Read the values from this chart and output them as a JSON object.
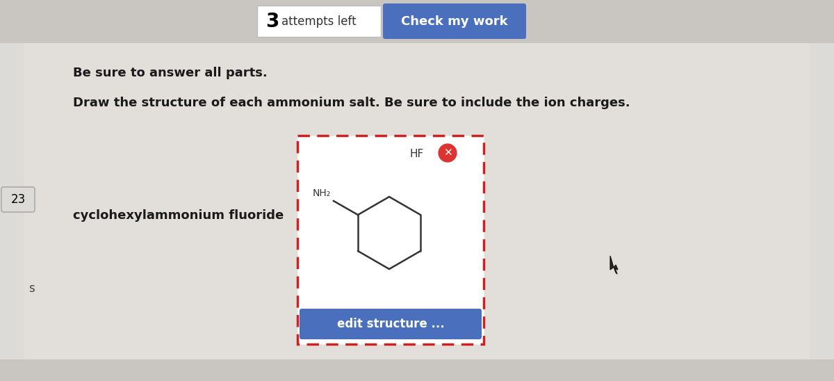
{
  "bg_color": "#dddbd8",
  "page_bg": "#dddbd8",
  "title_bold": "Be sure to answer all parts.",
  "subtitle": "Draw the structure of each ammonium salt. Be sure to include the ion charges.",
  "compound_label": "cyclohexylammonium fluoride",
  "check_button_text": "Check my work",
  "check_button_color": "#4a6fbd",
  "edit_button_text": "edit structure ...",
  "edit_button_color": "#4a6fbd",
  "hf_label": "HF",
  "nh2_label": "NH₂",
  "number_label": "23",
  "s_label": "s",
  "box_border_color": "#cc2222",
  "top_bar_color": "#c9c6c2",
  "bottom_bar_color": "#c9c6c2"
}
